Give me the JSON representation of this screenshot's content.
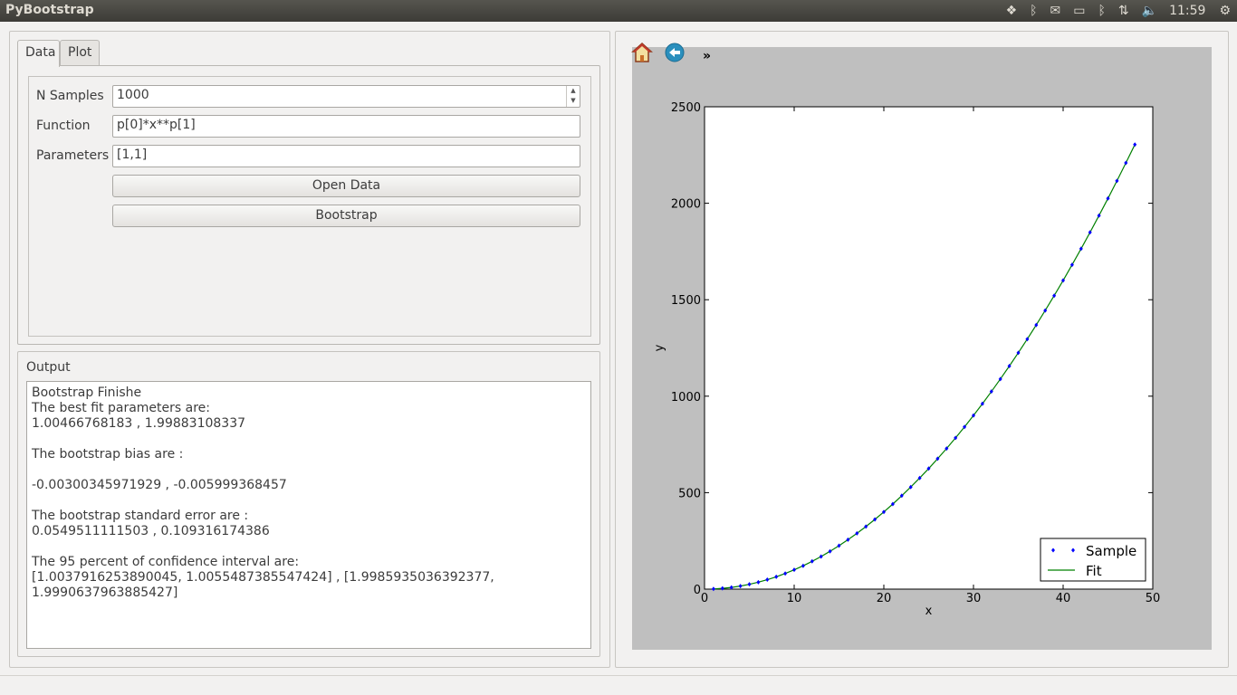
{
  "app": {
    "title": "PyBootstrap"
  },
  "tray": {
    "clock": "11:59"
  },
  "tabs": [
    {
      "label": "Data"
    },
    {
      "label": "Plot"
    }
  ],
  "form": {
    "n_samples_label": "N Samples",
    "n_samples_value": "1000",
    "function_label": "Function",
    "function_value": "p[0]*x**p[1]",
    "parameters_label": "Parameters",
    "parameters_value": "[1,1]",
    "open_data_label": "Open Data",
    "bootstrap_label": "Bootstrap"
  },
  "output": {
    "title": "Output",
    "lines": [
      "Bootstrap Finishe",
      "The best fit parameters are:",
      "1.00466768183 , 1.99883108337",
      "",
      "The bootstrap bias are :",
      "",
      "-0.00300345971929 , -0.005999368457",
      "",
      "The bootstrap standard error are :",
      "0.0549511111503 , 0.109316174386",
      "",
      "The 95 percent of confidence interval are:",
      "[1.0037916253890045, 1.0055487385547424] , [1.9985935036392377,",
      "1.9990637963885427]"
    ]
  },
  "plot_toolbar": {
    "more_label": "»"
  },
  "chart_data": {
    "type": "line",
    "xlabel": "x",
    "ylabel": "y",
    "xlim": [
      0,
      50
    ],
    "ylim": [
      0,
      2500
    ],
    "xticks": [
      "0",
      "10",
      "20",
      "30",
      "40",
      "50"
    ],
    "yticks": [
      "0",
      "500",
      "1000",
      "1500",
      "2000",
      "2500"
    ],
    "legend_position": "bottom-right",
    "series": [
      {
        "name": "Sample",
        "style": "points",
        "color": "#0000ff",
        "x": [
          1,
          2,
          3,
          4,
          5,
          6,
          7,
          8,
          9,
          10,
          11,
          12,
          13,
          14,
          15,
          16,
          17,
          18,
          19,
          20,
          21,
          22,
          23,
          24,
          25,
          26,
          27,
          28,
          29,
          30,
          31,
          32,
          33,
          34,
          35,
          36,
          37,
          38,
          39,
          40,
          41,
          42,
          43,
          44,
          45,
          46,
          47,
          48
        ],
        "y": [
          1,
          4,
          9,
          16,
          25,
          36,
          49,
          64,
          81,
          100,
          121,
          144,
          169,
          196,
          225,
          256,
          289,
          324,
          361,
          400,
          441,
          484,
          529,
          576,
          625,
          676,
          729,
          784,
          841,
          900,
          961,
          1024,
          1089,
          1156,
          1225,
          1296,
          1369,
          1444,
          1521,
          1600,
          1681,
          1764,
          1849,
          1936,
          2025,
          2116,
          2209,
          2304
        ]
      },
      {
        "name": "Fit",
        "style": "line",
        "color": "#008000",
        "x": [
          1,
          2,
          3,
          4,
          5,
          6,
          7,
          8,
          9,
          10,
          11,
          12,
          13,
          14,
          15,
          16,
          17,
          18,
          19,
          20,
          21,
          22,
          23,
          24,
          25,
          26,
          27,
          28,
          29,
          30,
          31,
          32,
          33,
          34,
          35,
          36,
          37,
          38,
          39,
          40,
          41,
          42,
          43,
          44,
          45,
          46,
          47,
          48
        ],
        "y": [
          1,
          4,
          9,
          16,
          25,
          36,
          49,
          64,
          81,
          100,
          121,
          144,
          169,
          196,
          225,
          256,
          289,
          324,
          361,
          400,
          441,
          484,
          529,
          576,
          625,
          676,
          729,
          784,
          841,
          900,
          961,
          1024,
          1089,
          1156,
          1225,
          1296,
          1369,
          1444,
          1521,
          1600,
          1681,
          1764,
          1849,
          1936,
          2025,
          2116,
          2209,
          2304
        ]
      }
    ]
  }
}
